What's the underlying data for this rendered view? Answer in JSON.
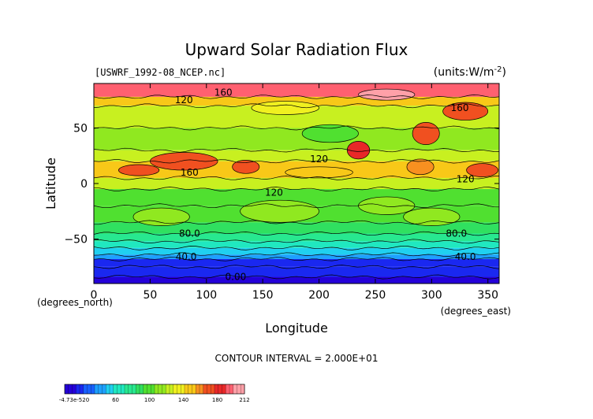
{
  "chart_data": {
    "type": "heatmap",
    "title": "Upward Solar Radiation Flux",
    "subtitle_left": "[USWRF_1992-08_NCEP.nc]",
    "subtitle_right": "(units:W/m^-2)",
    "xlabel": "Longitude",
    "ylabel": "Latitude",
    "x_unit_label": "(degrees_east)",
    "y_unit_label": "(degrees_north)",
    "xlim": [
      0,
      360
    ],
    "ylim": [
      -90,
      90
    ],
    "x_ticks": [
      0,
      50,
      100,
      150,
      200,
      250,
      300,
      350
    ],
    "y_ticks": [
      -50,
      0,
      50
    ],
    "contour_interval_text": "CONTOUR INTERVAL = 2.000E+01",
    "contour_labels": [
      {
        "text": "160",
        "x": 115,
        "y": 82
      },
      {
        "text": "120",
        "x": 80,
        "y": 75
      },
      {
        "text": "160",
        "x": 325,
        "y": 68
      },
      {
        "text": "120",
        "x": 200,
        "y": 22
      },
      {
        "text": "160",
        "x": 85,
        "y": 10
      },
      {
        "text": "120",
        "x": 160,
        "y": -8
      },
      {
        "text": "120",
        "x": 330,
        "y": 4
      },
      {
        "text": "80.0",
        "x": 85,
        "y": -45
      },
      {
        "text": "80.0",
        "x": 322,
        "y": -45
      },
      {
        "text": "40.0",
        "x": 82,
        "y": -66
      },
      {
        "text": "40.0",
        "x": 330,
        "y": -66
      },
      {
        "text": "0.00",
        "x": 126,
        "y": -84
      }
    ],
    "zonal_bands": [
      {
        "lat_min": 78,
        "lat_max": 90,
        "value": 190
      },
      {
        "lat_min": 70,
        "lat_max": 78,
        "value": 150
      },
      {
        "lat_min": 50,
        "lat_max": 70,
        "value": 120
      },
      {
        "lat_min": 30,
        "lat_max": 50,
        "value": 110
      },
      {
        "lat_min": 20,
        "lat_max": 30,
        "value": 125
      },
      {
        "lat_min": 5,
        "lat_max": 20,
        "value": 145
      },
      {
        "lat_min": -5,
        "lat_max": 5,
        "value": 118
      },
      {
        "lat_min": -20,
        "lat_max": -5,
        "value": 105
      },
      {
        "lat_min": -35,
        "lat_max": -20,
        "value": 100
      },
      {
        "lat_min": -45,
        "lat_max": -35,
        "value": 92
      },
      {
        "lat_min": -52,
        "lat_max": -45,
        "value": 80
      },
      {
        "lat_min": -58,
        "lat_max": -52,
        "value": 68
      },
      {
        "lat_min": -64,
        "lat_max": -58,
        "value": 55
      },
      {
        "lat_min": -68,
        "lat_max": -64,
        "value": 40
      },
      {
        "lat_min": -75,
        "lat_max": -68,
        "value": 22
      },
      {
        "lat_min": -84,
        "lat_max": -75,
        "value": 12
      },
      {
        "lat_min": -90,
        "lat_max": -84,
        "value": 0
      }
    ],
    "anomalies": [
      {
        "lon": 80,
        "lat": 20,
        "rlon": 30,
        "rlat": 8,
        "value": 175
      },
      {
        "lon": 40,
        "lat": 12,
        "rlon": 18,
        "rlat": 5,
        "value": 175
      },
      {
        "lon": 135,
        "lat": 15,
        "rlon": 12,
        "rlat": 6,
        "value": 170
      },
      {
        "lon": 235,
        "lat": 30,
        "rlon": 10,
        "rlat": 8,
        "value": 180
      },
      {
        "lon": 295,
        "lat": 45,
        "rlon": 12,
        "rlat": 10,
        "value": 165
      },
      {
        "lon": 345,
        "lat": 12,
        "rlon": 14,
        "rlat": 6,
        "value": 175
      },
      {
        "lon": 290,
        "lat": 15,
        "rlon": 12,
        "rlat": 7,
        "value": 160
      },
      {
        "lon": 260,
        "lat": 80,
        "rlon": 25,
        "rlat": 5,
        "value": 205
      },
      {
        "lon": 330,
        "lat": 65,
        "rlon": 20,
        "rlat": 8,
        "value": 170
      },
      {
        "lon": 170,
        "lat": 68,
        "rlon": 30,
        "rlat": 6,
        "value": 140
      },
      {
        "lon": 210,
        "lat": 45,
        "rlon": 25,
        "rlat": 8,
        "value": 95
      },
      {
        "lon": 200,
        "lat": 10,
        "rlon": 30,
        "rlat": 5,
        "value": 150
      },
      {
        "lon": 165,
        "lat": -25,
        "rlon": 35,
        "rlat": 10,
        "value": 110
      },
      {
        "lon": 260,
        "lat": -20,
        "rlon": 25,
        "rlat": 8,
        "value": 115
      },
      {
        "lon": 60,
        "lat": -30,
        "rlon": 25,
        "rlat": 8,
        "value": 110
      },
      {
        "lon": 300,
        "lat": -30,
        "rlon": 25,
        "rlat": 8,
        "value": 110
      }
    ],
    "colorbar": {
      "min": 0,
      "max": 212,
      "tick_labels": [
        "-4.73e-520",
        "60",
        "100",
        "140",
        "180",
        "212"
      ],
      "tick_values": [
        0,
        60,
        100,
        140,
        180,
        212
      ],
      "colors": [
        "#2400d8",
        "#1a28f0",
        "#1860ff",
        "#1ea0ff",
        "#20d0f0",
        "#20e8c0",
        "#28e890",
        "#30e060",
        "#50e030",
        "#90e820",
        "#c8f020",
        "#f0f020",
        "#f8c818",
        "#f89020",
        "#f05020",
        "#e82828",
        "#ff6070",
        "#ffa0a8"
      ]
    },
    "legend": "bottom-left"
  }
}
